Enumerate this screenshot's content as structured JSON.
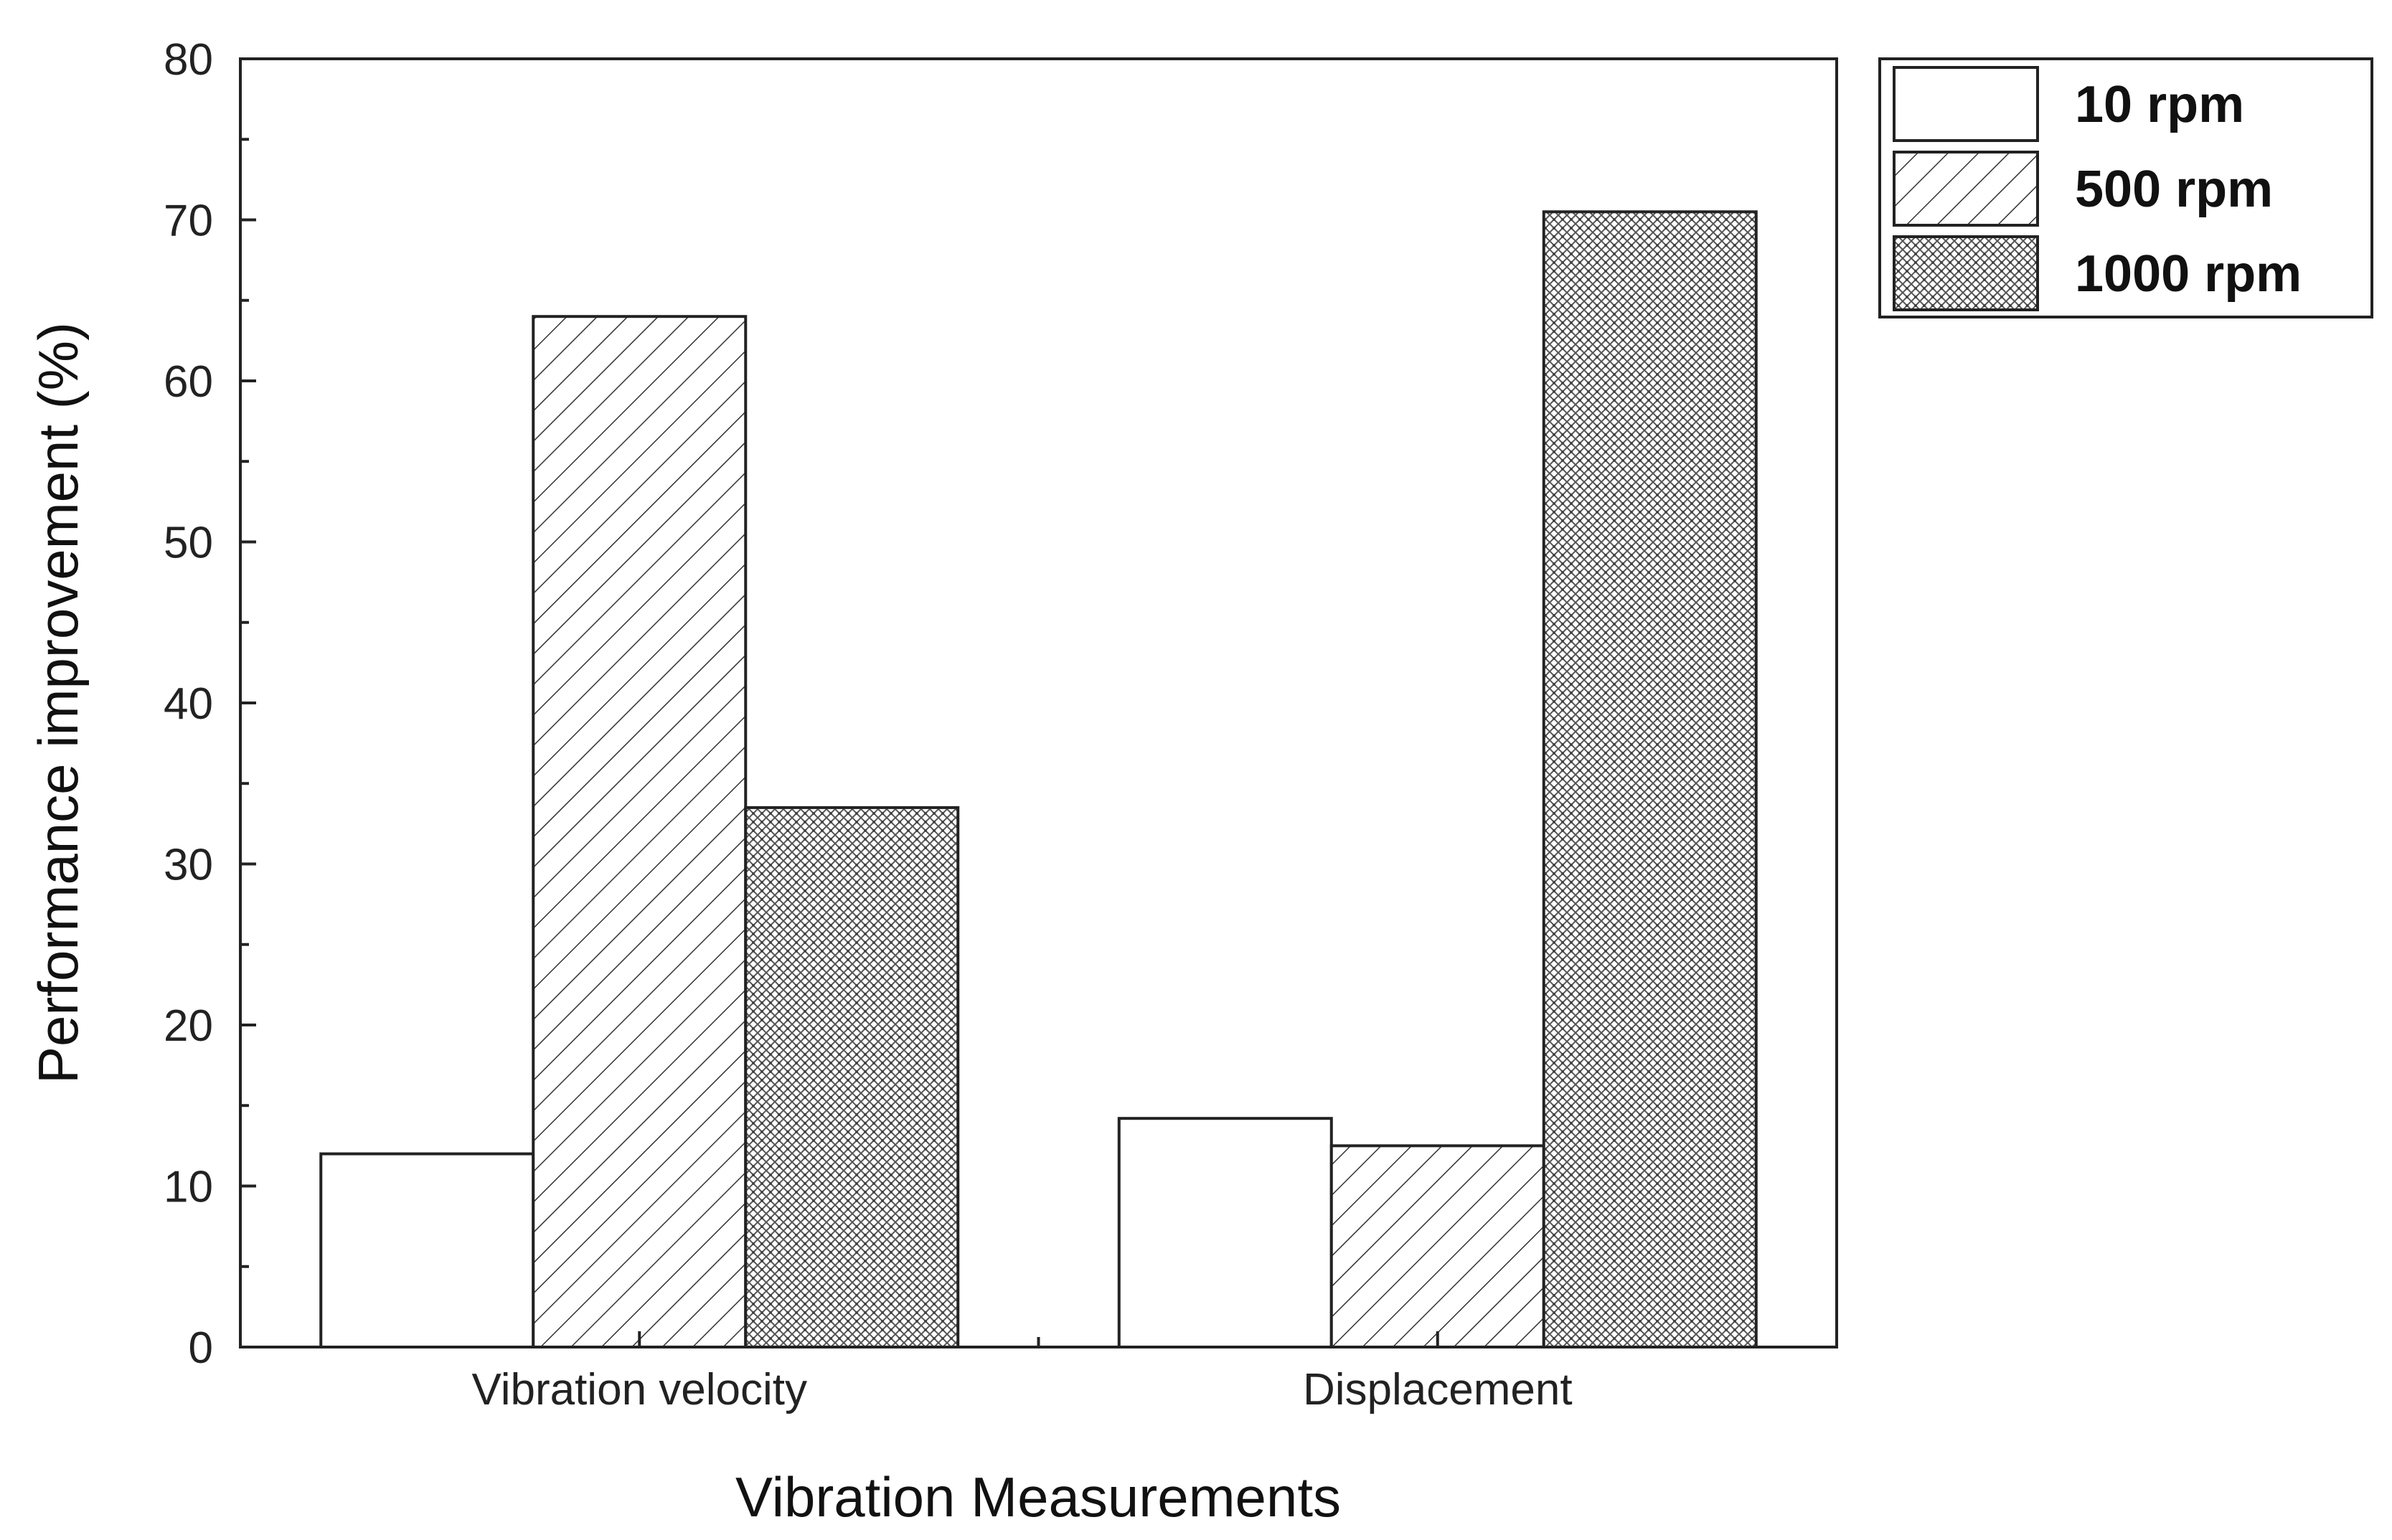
{
  "chart_data": {
    "type": "bar",
    "categories": [
      "Vibration velocity",
      "Displacement"
    ],
    "series": [
      {
        "name": "10 rpm",
        "values": [
          12.0,
          14.2
        ],
        "pattern": "solid"
      },
      {
        "name": "500 rpm",
        "values": [
          64.0,
          12.5
        ],
        "pattern": "diagonal-hatch"
      },
      {
        "name": "1000 rpm",
        "values": [
          33.5,
          70.5
        ],
        "pattern": "crosshatch"
      }
    ],
    "xlabel": "Vibration Measurements",
    "ylabel": "Performance improvement (%)",
    "ylim": [
      0,
      80
    ],
    "yticks": [
      "0",
      "10",
      "20",
      "30",
      "40",
      "50",
      "60",
      "70",
      "80"
    ],
    "grid": false,
    "legend_position": "top-right, outside plot"
  }
}
